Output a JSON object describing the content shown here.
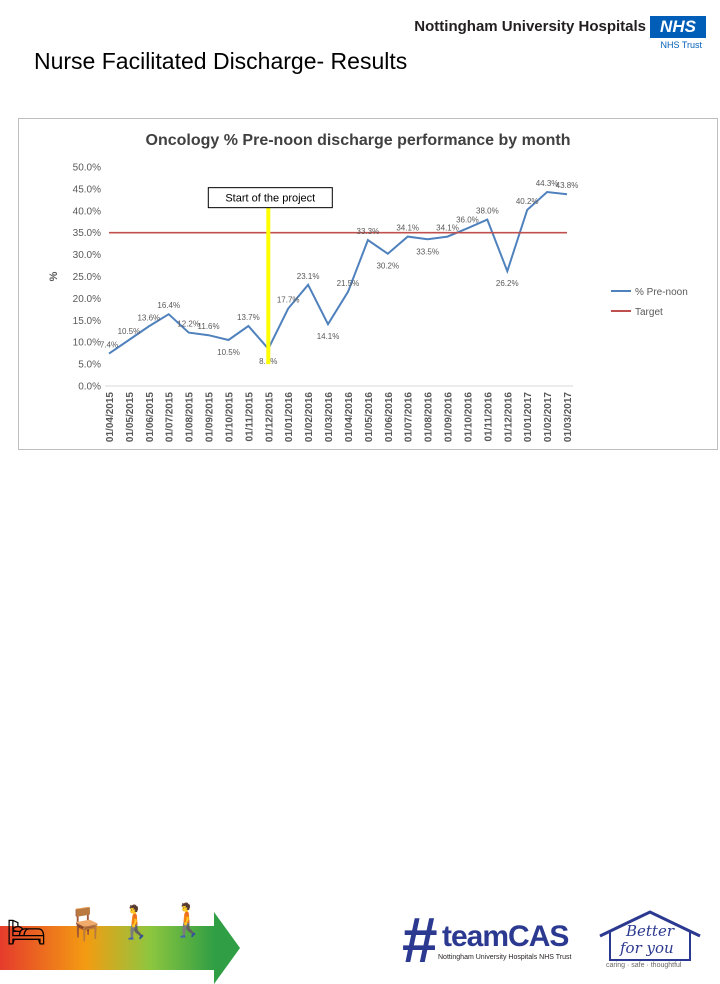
{
  "header": {
    "org_name": "Nottingham University Hospitals",
    "nhs": "NHS",
    "trust": "NHS Trust"
  },
  "slide_title": "Nurse Facilitated Discharge- Results",
  "chart_data": {
    "type": "line",
    "title": "Oncology % Pre-noon discharge performance by month",
    "ylabel": "%",
    "ylim": [
      0,
      50
    ],
    "yticks": [
      "0.0%",
      "5.0%",
      "10.0%",
      "15.0%",
      "20.0%",
      "25.0%",
      "30.0%",
      "35.0%",
      "40.0%",
      "45.0%",
      "50.0%"
    ],
    "categories": [
      "01/04/2015",
      "01/05/2015",
      "01/06/2015",
      "01/07/2015",
      "01/08/2015",
      "01/09/2015",
      "01/10/2015",
      "01/11/2015",
      "01/12/2015",
      "01/01/2016",
      "01/02/2016",
      "01/03/2016",
      "01/04/2016",
      "01/05/2016",
      "01/06/2016",
      "01/07/2016",
      "01/08/2016",
      "01/09/2016",
      "01/10/2016",
      "01/11/2016",
      "01/12/2016",
      "01/01/2017",
      "01/02/2017",
      "01/03/2017"
    ],
    "series": [
      {
        "name": "% Pre-noon",
        "color": "#4f81bd",
        "values": [
          7.4,
          10.5,
          13.6,
          16.4,
          12.2,
          11.6,
          10.5,
          13.7,
          8.5,
          17.7,
          23.1,
          14.1,
          21.5,
          33.3,
          30.2,
          34.1,
          33.5,
          34.1,
          36.0,
          38.0,
          26.2,
          40.2,
          44.3,
          43.8
        ]
      },
      {
        "name": "Target",
        "color": "#c0504d",
        "values": [
          35,
          35,
          35,
          35,
          35,
          35,
          35,
          35,
          35,
          35,
          35,
          35,
          35,
          35,
          35,
          35,
          35,
          35,
          35,
          35,
          35,
          35,
          35,
          35
        ]
      }
    ],
    "data_labels": [
      "7.4%",
      "10.5%",
      "13.6%",
      "16.4%",
      "12.2%",
      "11.6%",
      "10.5%",
      "13.7%",
      "8.5%",
      "17.7%",
      "23.1%",
      "14.1%",
      "21.5%",
      "33.3%",
      "30.2%",
      "34.1%",
      "33.5%",
      "34.1%",
      "36.0%",
      "38.0%",
      "26.2%",
      "40.2%",
      "44.3%",
      "43.8%"
    ],
    "legend_position": "right",
    "annotation": {
      "text": "Start of the project",
      "category": "01/12/2015",
      "line_color": "#ffff00",
      "box_y": 43,
      "line_from": 5,
      "line_to": 44
    },
    "grid": false
  },
  "footer": {
    "team_hash": "#",
    "team_text": "team",
    "team_cas": "CAS",
    "team_sub": "Nottingham University Hospitals NHS Trust",
    "better_1": "Better",
    "better_2": "for you",
    "better_3": "caring · safe · thoughtful"
  }
}
